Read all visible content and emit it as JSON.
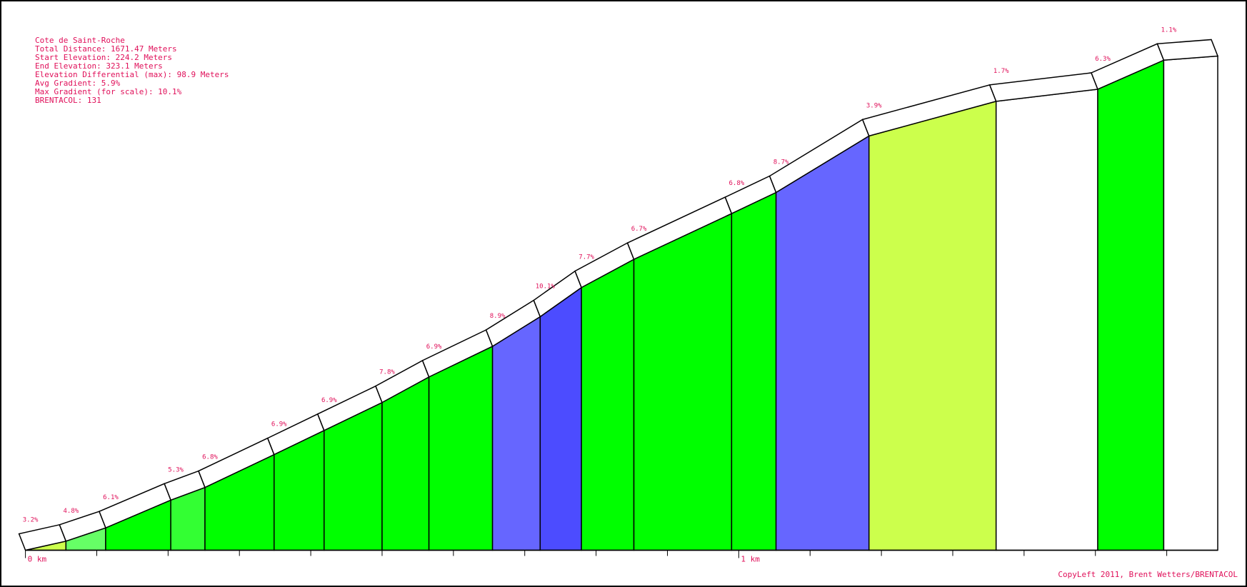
{
  "chart_data": {
    "type": "profile",
    "info_lines": [
      "Cote de Saint-Roche",
      "Total Distance: 1671.47 Meters",
      "Start Elevation: 224.2 Meters",
      "End Elevation: 323.1 Meters",
      "Elevation Differential (max): 98.9 Meters",
      "Avg Gradient: 5.9%",
      "Max Gradient (for scale): 10.1%",
      "BRENTACOL: 131"
    ],
    "values": [
      3.2,
      4.8,
      6.1,
      5.3,
      6.8,
      6.9,
      6.9,
      7.8,
      6.9,
      8.9,
      10.1,
      7.7,
      6.7,
      6.8,
      8.7,
      3.9,
      1.7,
      6.3,
      1.1
    ],
    "value_labels": [
      "3.2%",
      "4.8%",
      "6.1%",
      "5.3%",
      "6.8%",
      "6.9%",
      "6.9%",
      "7.8%",
      "6.9%",
      "8.9%",
      "10.1%",
      "7.7%",
      "6.7%",
      "6.8%",
      "8.7%",
      "3.9%",
      "1.7%",
      "6.3%",
      "1.1%"
    ],
    "lengths": [
      56.8,
      55.7,
      91.3,
      47.9,
      96.9,
      70.1,
      81.3,
      65.7,
      89.1,
      66.8,
      57.9,
      73.5,
      137.0,
      62.3,
      130.3,
      178.2,
      142.5,
      92.5,
      75.7
    ],
    "colors": [
      "#ccff4c",
      "#66ff66",
      "#00ff00",
      "#33ff33",
      "#00ff00",
      "#00ff00",
      "#00ff00",
      "#00ff00",
      "#00ff00",
      "#6666ff",
      "#4c4cff",
      "#00ff00",
      "#00ff00",
      "#00ff00",
      "#6666ff",
      "#ccff4c",
      "#ffffff",
      "#00ff00",
      "#ffffff"
    ],
    "xlim": [
      0,
      1671.47
    ],
    "xticks": [
      {
        "value": 0,
        "label": "0 km"
      },
      {
        "value": 1000,
        "label": "1 km"
      }
    ],
    "xminor_ticks": [
      100,
      200,
      300,
      400,
      500,
      600,
      700,
      800,
      900,
      1100,
      1200,
      1300,
      1400,
      1500,
      1600
    ],
    "copyright": "CopyLeft 2011, Brent Wetters/BRENTACOL"
  }
}
